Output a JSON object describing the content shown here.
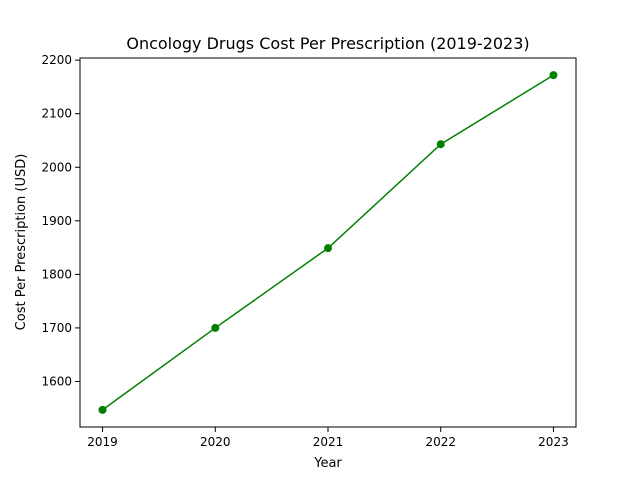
{
  "chart_data": {
    "type": "line",
    "title": "Oncology Drugs Cost Per Prescription (2019-2023)",
    "xlabel": "Year",
    "ylabel": "Cost Per Prescription (USD)",
    "x": [
      "2019",
      "2020",
      "2021",
      "2022",
      "2023"
    ],
    "series": [
      {
        "values": [
          1547,
          1700,
          1849,
          2043,
          2172
        ],
        "color": "#008000",
        "marker": "circle"
      }
    ],
    "xlim": [
      2018.8,
      2023.2
    ],
    "ylim": [
      1515,
      2204
    ],
    "yticks": [
      "1600",
      "1700",
      "1800",
      "1900",
      "2000",
      "2100",
      "2200"
    ],
    "grid": false
  }
}
